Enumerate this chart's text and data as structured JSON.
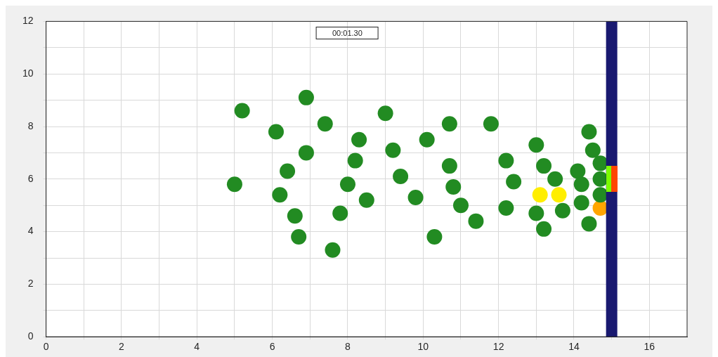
{
  "chart_data": {
    "type": "scatter",
    "annotations": [
      "00:01.30"
    ],
    "xlim": [
      0,
      17
    ],
    "ylim": [
      0,
      12
    ],
    "xticks": [
      0,
      {
        "value": 1,
        "label": null
      },
      2,
      {
        "value": 3,
        "label": null
      },
      4,
      {
        "value": 5,
        "label": null
      },
      6,
      {
        "value": 7,
        "label": null
      },
      8,
      {
        "value": 9,
        "label": null
      },
      10,
      {
        "value": 11,
        "label": null
      },
      12,
      {
        "value": 13,
        "label": null
      },
      14,
      {
        "value": 15,
        "label": null
      },
      16
    ],
    "yticks": [
      0,
      {
        "value": 1,
        "label": null
      },
      2,
      {
        "value": 3,
        "label": null
      },
      4,
      {
        "value": 5,
        "label": null
      },
      6,
      {
        "value": 7,
        "label": null
      },
      8,
      {
        "value": 9,
        "label": null
      },
      10,
      {
        "value": 11,
        "label": null
      },
      12
    ],
    "grid": true,
    "marker": "circle",
    "ref_lines": [
      {
        "axis": "x",
        "value": 15,
        "color": "#191970"
      }
    ],
    "series": [
      {
        "color": "#228b22",
        "x": [
          5.0,
          5.2,
          6.1,
          6.2,
          6.4,
          6.6,
          6.7,
          6.9,
          6.9,
          7.4,
          7.6,
          7.8,
          8.0,
          8.2,
          8.3,
          8.5,
          9.0,
          9.2,
          9.4,
          9.8,
          10.1,
          10.3,
          10.7,
          10.7,
          10.8,
          11.0,
          11.4,
          11.8,
          12.2,
          12.2,
          12.4,
          13.0,
          13.0,
          13.2,
          13.2,
          13.5,
          13.7,
          14.1,
          14.2,
          14.2,
          14.4,
          14.4,
          14.5,
          14.7,
          14.7,
          14.7
        ],
        "values": [
          5.8,
          8.6,
          7.8,
          5.4,
          6.3,
          4.6,
          3.8,
          7.0,
          9.1,
          8.1,
          3.3,
          4.7,
          5.8,
          6.7,
          7.5,
          5.2,
          8.5,
          7.1,
          6.1,
          5.3,
          7.5,
          3.8,
          6.5,
          8.1,
          5.7,
          5.0,
          4.4,
          8.1,
          6.7,
          4.9,
          5.9,
          7.3,
          4.7,
          6.5,
          4.1,
          6.0,
          4.8,
          6.3,
          5.8,
          5.1,
          7.8,
          4.3,
          7.1,
          6.6,
          6.0,
          5.4
        ]
      },
      {
        "color": "#ffee00",
        "x": [
          13.1,
          13.6
        ],
        "values": [
          5.4,
          5.4
        ]
      },
      {
        "color": "#ffa500",
        "x": [
          14.7
        ],
        "values": [
          4.9
        ]
      }
    ]
  }
}
